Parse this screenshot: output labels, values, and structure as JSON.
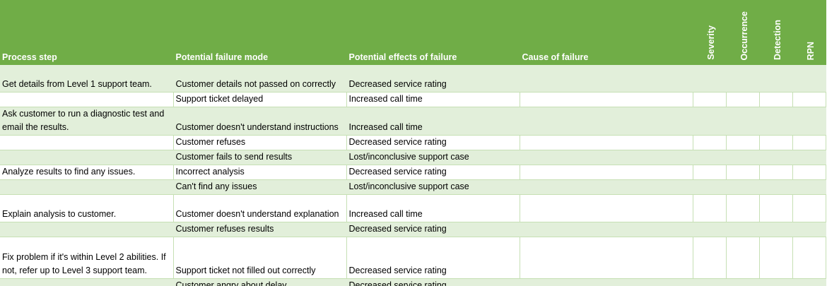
{
  "table": {
    "columns": [
      "Process step",
      "Potential failure mode",
      "Potential effects of failure",
      "Cause of failure",
      "Severity",
      "Occurrence",
      "Detection",
      "RPN"
    ],
    "rows": [
      {
        "step": "Get details from Level 1 support team.",
        "mode": "Customer details not passed on correctly",
        "effect": "Decreased service rating"
      },
      {
        "mode": "Support ticket delayed",
        "effect": "Increased call time"
      },
      {
        "step": "Ask customer to run a diagnostic test and email the results.",
        "mode": "Customer doesn't understand instructions",
        "effect": "Increased call time"
      },
      {
        "mode": "Customer refuses",
        "effect": "Decreased service rating"
      },
      {
        "mode": "Customer fails to send results",
        "effect": "Lost/inconclusive support case"
      },
      {
        "step": "Analyze results to find any issues.",
        "mode": "Incorrect analysis",
        "effect": "Decreased service rating"
      },
      {
        "mode": "Can't find any issues",
        "effect": "Lost/inconclusive support case"
      },
      {
        "step": "Explain analysis to customer.",
        "mode": "Customer doesn't understand explanation",
        "effect": "Increased call time"
      },
      {
        "mode": "Customer refuses results",
        "effect": "Decreased service rating"
      },
      {
        "step": "Fix problem if it's within Level 2 abilities. If not, refer up to Level 3 support team.",
        "mode": "Support ticket not filled out correctly",
        "effect": "Decreased service rating"
      },
      {
        "mode": "Customer angry about delay",
        "effect": "Decreased service rating"
      }
    ]
  }
}
